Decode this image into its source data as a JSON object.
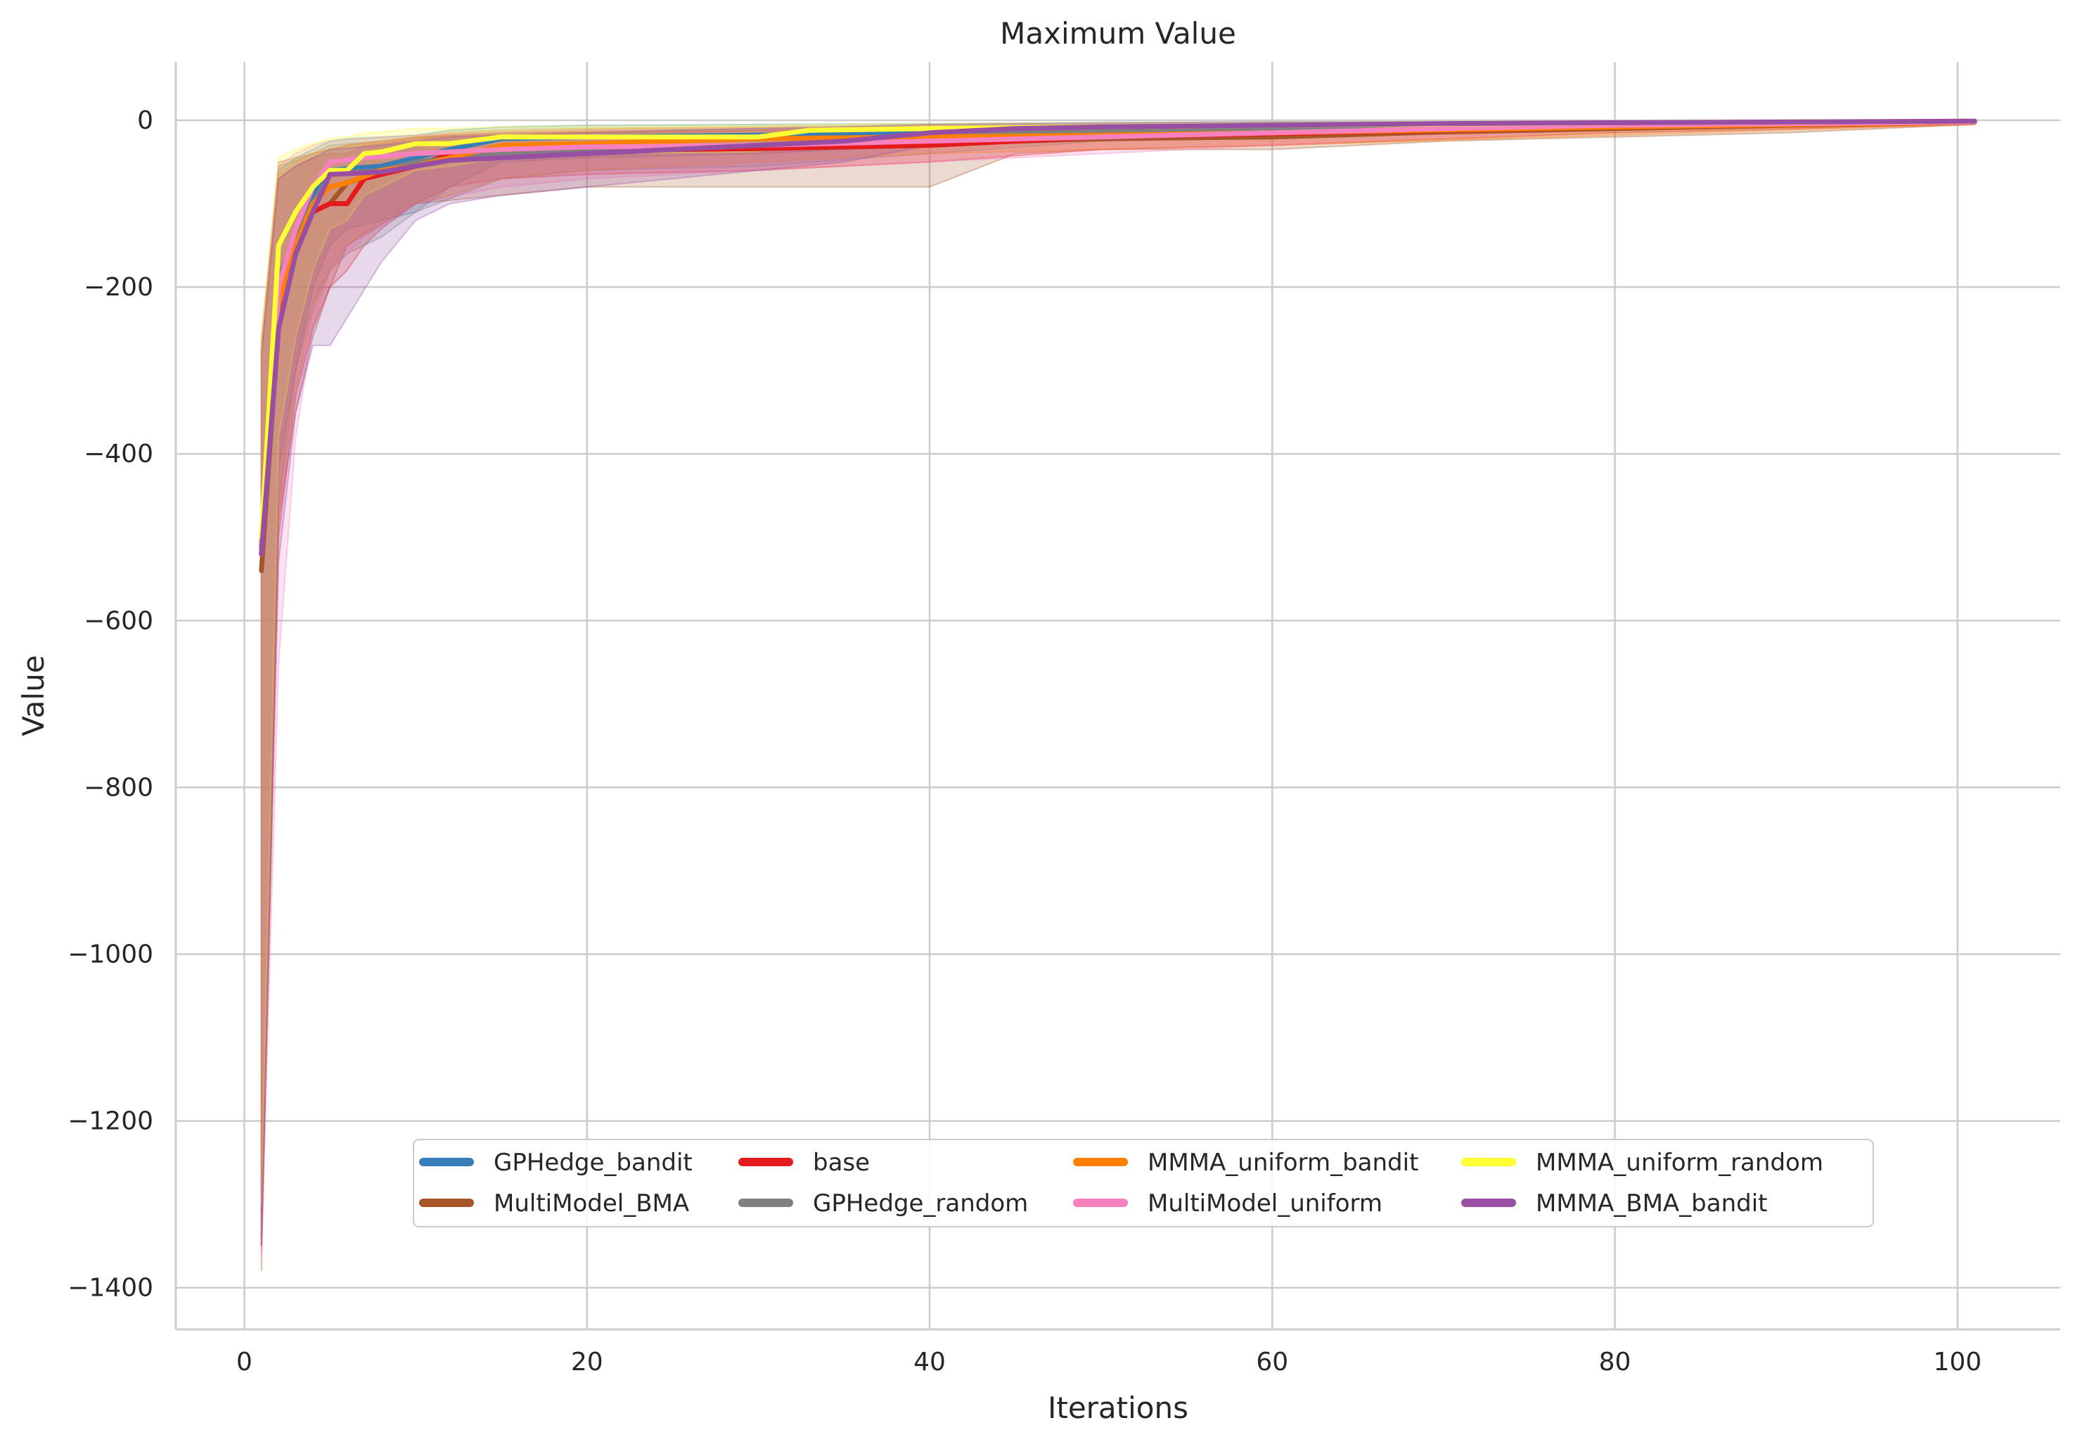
{
  "chart_data": {
    "type": "line",
    "title": "Maximum Value",
    "xlabel": "Iterations",
    "ylabel": "Value",
    "xlim": [
      -4,
      106
    ],
    "ylim": [
      -1450,
      70
    ],
    "xticks": [
      0,
      20,
      40,
      60,
      80,
      100
    ],
    "yticks": [
      0,
      -200,
      -400,
      -600,
      -800,
      -1000,
      -1200,
      -1400
    ],
    "grid": true,
    "legend_position": "lower-center",
    "legend_columns": 4,
    "series": [
      {
        "name": "GPHedge_bandit",
        "color": "#377eb8",
        "x": [
          1,
          2,
          3,
          4,
          5,
          6,
          8,
          10,
          12,
          15,
          20,
          30,
          40,
          50,
          60,
          70,
          80,
          90,
          101
        ],
        "y": [
          -520,
          -200,
          -130,
          -90,
          -60,
          -58,
          -55,
          -45,
          -35,
          -22,
          -20,
          -18,
          -15,
          -12,
          -10,
          -8,
          -6,
          -4,
          -2
        ],
        "lower": [
          -1350,
          -420,
          -300,
          -200,
          -150,
          -130,
          -120,
          -110,
          -80,
          -50,
          -45,
          -40,
          -30,
          -25,
          -20,
          -15,
          -12,
          -8,
          -4
        ],
        "upper": [
          -280,
          -60,
          -45,
          -35,
          -25,
          -22,
          -20,
          -18,
          -12,
          -8,
          -6,
          -5,
          -4,
          -3,
          -2,
          -2,
          -1,
          -1,
          -1
        ]
      },
      {
        "name": "MultiModel_BMA",
        "color": "#a65628",
        "x": [
          1,
          2,
          3,
          4,
          5,
          6,
          10,
          20,
          30,
          40,
          45,
          50,
          60,
          70,
          80,
          90,
          101
        ],
        "y": [
          -540,
          -240,
          -160,
          -110,
          -100,
          -75,
          -50,
          -35,
          -30,
          -28,
          -25,
          -22,
          -20,
          -14,
          -10,
          -6,
          -2
        ],
        "lower": [
          -1380,
          -480,
          -350,
          -260,
          -200,
          -150,
          -100,
          -80,
          -80,
          -80,
          -40,
          -35,
          -35,
          -25,
          -20,
          -15,
          -5
        ],
        "upper": [
          -260,
          -50,
          -45,
          -40,
          -35,
          -30,
          -20,
          -15,
          -12,
          -10,
          -8,
          -6,
          -5,
          -4,
          -3,
          -2,
          -1
        ]
      },
      {
        "name": "base",
        "color": "#e41a1c",
        "x": [
          1,
          2,
          3,
          4,
          5,
          6,
          7,
          8,
          10,
          12,
          15,
          20,
          30,
          40,
          50,
          60,
          80,
          101
        ],
        "y": [
          -520,
          -210,
          -150,
          -110,
          -100,
          -100,
          -70,
          -65,
          -55,
          -40,
          -38,
          -36,
          -34,
          -30,
          -20,
          -16,
          -8,
          -2
        ],
        "lower": [
          -1350,
          -500,
          -330,
          -250,
          -200,
          -180,
          -150,
          -130,
          -100,
          -80,
          -70,
          -65,
          -60,
          -50,
          -35,
          -30,
          -15,
          -5
        ],
        "upper": [
          -280,
          -70,
          -55,
          -45,
          -40,
          -40,
          -30,
          -28,
          -22,
          -18,
          -15,
          -14,
          -12,
          -10,
          -8,
          -6,
          -3,
          -1
        ]
      },
      {
        "name": "GPHedge_random",
        "color": "#808080",
        "x": [
          1,
          2,
          3,
          4,
          5,
          6,
          8,
          10,
          15,
          20,
          30,
          40,
          50,
          60,
          70,
          80,
          90,
          101
        ],
        "y": [
          -510,
          -190,
          -140,
          -100,
          -65,
          -63,
          -60,
          -50,
          -40,
          -35,
          -30,
          -20,
          -12,
          -10,
          -6,
          -4,
          -3,
          -2
        ],
        "lower": [
          -1340,
          -460,
          -300,
          -220,
          -180,
          -160,
          -140,
          -110,
          -70,
          -60,
          -55,
          -40,
          -25,
          -20,
          -12,
          -8,
          -5,
          -4
        ],
        "upper": [
          -270,
          -55,
          -48,
          -40,
          -30,
          -28,
          -25,
          -20,
          -15,
          -12,
          -10,
          -8,
          -5,
          -4,
          -3,
          -2,
          -1,
          -1
        ]
      },
      {
        "name": "MMMA_uniform_bandit",
        "color": "#ff7f00",
        "x": [
          1,
          2,
          3,
          4,
          5,
          6,
          8,
          10,
          12,
          15,
          20,
          30,
          40,
          50,
          60,
          80,
          101
        ],
        "y": [
          -515,
          -220,
          -150,
          -100,
          -80,
          -75,
          -60,
          -55,
          -45,
          -30,
          -28,
          -22,
          -20,
          -18,
          -15,
          -8,
          -2
        ],
        "lower": [
          -1330,
          -470,
          -320,
          -230,
          -180,
          -150,
          -120,
          -100,
          -90,
          -70,
          -60,
          -50,
          -40,
          -35,
          -30,
          -18,
          -5
        ],
        "upper": [
          -270,
          -65,
          -50,
          -40,
          -35,
          -30,
          -25,
          -20,
          -15,
          -12,
          -10,
          -8,
          -6,
          -5,
          -4,
          -2,
          -1
        ]
      },
      {
        "name": "MultiModel_uniform",
        "color": "#f781bf",
        "x": [
          1,
          2,
          3,
          4,
          5,
          7,
          10,
          15,
          20,
          30,
          40,
          50,
          60,
          70,
          80,
          90,
          101
        ],
        "y": [
          -520,
          -200,
          -130,
          -80,
          -50,
          -45,
          -40,
          -35,
          -32,
          -30,
          -25,
          -20,
          -15,
          -10,
          -6,
          -4,
          -2
        ],
        "lower": [
          -1360,
          -650,
          -380,
          -250,
          -180,
          -140,
          -100,
          -80,
          -70,
          -60,
          -50,
          -40,
          -30,
          -20,
          -12,
          -8,
          -4
        ],
        "upper": [
          -270,
          -55,
          -40,
          -30,
          -25,
          -22,
          -18,
          -15,
          -12,
          -10,
          -8,
          -6,
          -5,
          -4,
          -3,
          -2,
          -1
        ]
      },
      {
        "name": "MMMA_uniform_random",
        "color": "#ffff33",
        "x": [
          1,
          2,
          3,
          4,
          5,
          6,
          7,
          8,
          10,
          12,
          15,
          20,
          30,
          33,
          40,
          50,
          60,
          80,
          101
        ],
        "y": [
          -500,
          -150,
          -110,
          -80,
          -60,
          -60,
          -40,
          -38,
          -28,
          -28,
          -20,
          -20,
          -20,
          -12,
          -10,
          -8,
          -6,
          -3,
          -1
        ],
        "lower": [
          -1300,
          -380,
          -260,
          -180,
          -130,
          -120,
          -90,
          -80,
          -60,
          -55,
          -45,
          -40,
          -38,
          -25,
          -20,
          -15,
          -12,
          -6,
          -2
        ],
        "upper": [
          -260,
          -45,
          -35,
          -28,
          -22,
          -20,
          -15,
          -14,
          -10,
          -10,
          -8,
          -7,
          -6,
          -5,
          -4,
          -3,
          -2,
          -1,
          -1
        ]
      },
      {
        "name": "MMMA_BMA_bandit",
        "color": "#984ea3",
        "x": [
          1,
          2,
          3,
          4,
          5,
          8,
          10,
          12,
          15,
          20,
          25,
          30,
          35,
          40,
          45,
          50,
          60,
          70,
          80,
          90,
          101
        ],
        "y": [
          -520,
          -250,
          -160,
          -110,
          -65,
          -62,
          -55,
          -48,
          -45,
          -40,
          -35,
          -30,
          -25,
          -15,
          -10,
          -8,
          -6,
          -4,
          -3,
          -2,
          -1
        ],
        "lower": [
          -1350,
          -530,
          -350,
          -270,
          -270,
          -170,
          -120,
          -100,
          -90,
          -80,
          -70,
          -60,
          -50,
          -30,
          -20,
          -15,
          -12,
          -8,
          -6,
          -4,
          -2
        ],
        "upper": [
          -280,
          -70,
          -55,
          -45,
          -35,
          -30,
          -25,
          -20,
          -18,
          -15,
          -12,
          -10,
          -8,
          -5,
          -4,
          -3,
          -2,
          -2,
          -1,
          -1,
          -1
        ]
      }
    ]
  }
}
